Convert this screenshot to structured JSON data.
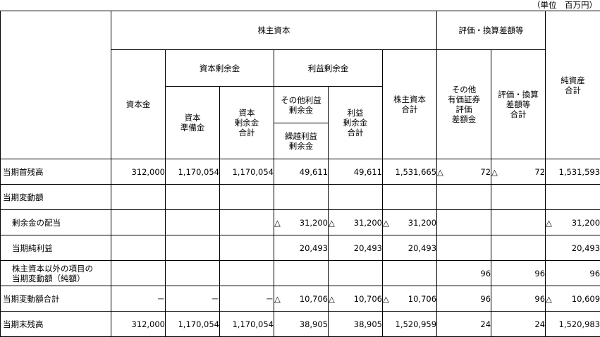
{
  "unit": "（単位　百万円）",
  "headers": {
    "kabunushi_shihon": "株主資本",
    "hyoka_group": "評価・換算差額等",
    "junshisan": "純資産\n合計",
    "shihonkin": "資本金",
    "shihon_joyokin": "資本剰余金",
    "rieki_joyokin": "利益剰余金",
    "kabunushi_total": "株主資本\n合計",
    "sonota_yuka": "その他\n有価証券\n評価\n差額金",
    "hyoka_total": "評価・換算\n差額等\n合計",
    "shihon_junbikin": "資本\n準備金",
    "shihon_joyo_total": "資本\n剰余金\n合計",
    "sonota_rieki": "その他利益\n剰余金",
    "rieki_joyo_total": "利益\n剰余金\n合計",
    "kurikoshi": "繰越利益\n剰余金"
  },
  "rows": [
    {
      "label": "当期首残高",
      "indent": false,
      "cells": [
        {
          "tri": "",
          "val": "312,000"
        },
        {
          "tri": "",
          "val": "1,170,054"
        },
        {
          "tri": "",
          "val": "1,170,054"
        },
        {
          "tri": "",
          "val": "49,611"
        },
        {
          "tri": "",
          "val": "49,611"
        },
        {
          "tri": "",
          "val": "1,531,665"
        },
        {
          "tri": "△",
          "val": "72"
        },
        {
          "tri": "△",
          "val": "72"
        },
        {
          "tri": "",
          "val": "1,531,593"
        }
      ]
    },
    {
      "label": "当期変動額",
      "indent": false,
      "cells": [
        {
          "tri": "",
          "val": ""
        },
        {
          "tri": "",
          "val": ""
        },
        {
          "tri": "",
          "val": ""
        },
        {
          "tri": "",
          "val": ""
        },
        {
          "tri": "",
          "val": ""
        },
        {
          "tri": "",
          "val": ""
        },
        {
          "tri": "",
          "val": ""
        },
        {
          "tri": "",
          "val": ""
        },
        {
          "tri": "",
          "val": ""
        }
      ]
    },
    {
      "label": "剰余金の配当",
      "indent": true,
      "cells": [
        {
          "tri": "",
          "val": ""
        },
        {
          "tri": "",
          "val": ""
        },
        {
          "tri": "",
          "val": ""
        },
        {
          "tri": "△",
          "val": "31,200"
        },
        {
          "tri": "△",
          "val": "31,200"
        },
        {
          "tri": "△",
          "val": "31,200"
        },
        {
          "tri": "",
          "val": ""
        },
        {
          "tri": "",
          "val": ""
        },
        {
          "tri": "△",
          "val": "31,200"
        }
      ]
    },
    {
      "label": "当期純利益",
      "indent": true,
      "cells": [
        {
          "tri": "",
          "val": ""
        },
        {
          "tri": "",
          "val": ""
        },
        {
          "tri": "",
          "val": ""
        },
        {
          "tri": "",
          "val": "20,493"
        },
        {
          "tri": "",
          "val": "20,493"
        },
        {
          "tri": "",
          "val": "20,493"
        },
        {
          "tri": "",
          "val": ""
        },
        {
          "tri": "",
          "val": ""
        },
        {
          "tri": "",
          "val": "20,493"
        }
      ]
    },
    {
      "label": "株主資本以外の項目の\n当期変動額（純額）",
      "indent": true,
      "cells": [
        {
          "tri": "",
          "val": ""
        },
        {
          "tri": "",
          "val": ""
        },
        {
          "tri": "",
          "val": ""
        },
        {
          "tri": "",
          "val": ""
        },
        {
          "tri": "",
          "val": ""
        },
        {
          "tri": "",
          "val": ""
        },
        {
          "tri": "",
          "val": "96"
        },
        {
          "tri": "",
          "val": "96"
        },
        {
          "tri": "",
          "val": "96"
        }
      ]
    },
    {
      "label": "当期変動額合計",
      "indent": false,
      "cells": [
        {
          "tri": "",
          "val": "－"
        },
        {
          "tri": "",
          "val": "－"
        },
        {
          "tri": "",
          "val": "－"
        },
        {
          "tri": "△",
          "val": "10,706"
        },
        {
          "tri": "△",
          "val": "10,706"
        },
        {
          "tri": "△",
          "val": "10,706"
        },
        {
          "tri": "",
          "val": "96"
        },
        {
          "tri": "",
          "val": "96"
        },
        {
          "tri": "△",
          "val": "10,609"
        }
      ]
    },
    {
      "label": "当期末残高",
      "indent": false,
      "cells": [
        {
          "tri": "",
          "val": "312,000"
        },
        {
          "tri": "",
          "val": "1,170,054"
        },
        {
          "tri": "",
          "val": "1,170,054"
        },
        {
          "tri": "",
          "val": "38,905"
        },
        {
          "tri": "",
          "val": "38,905"
        },
        {
          "tri": "",
          "val": "1,520,959"
        },
        {
          "tri": "",
          "val": "24"
        },
        {
          "tri": "",
          "val": "24"
        },
        {
          "tri": "",
          "val": "1,520,983"
        }
      ]
    }
  ]
}
